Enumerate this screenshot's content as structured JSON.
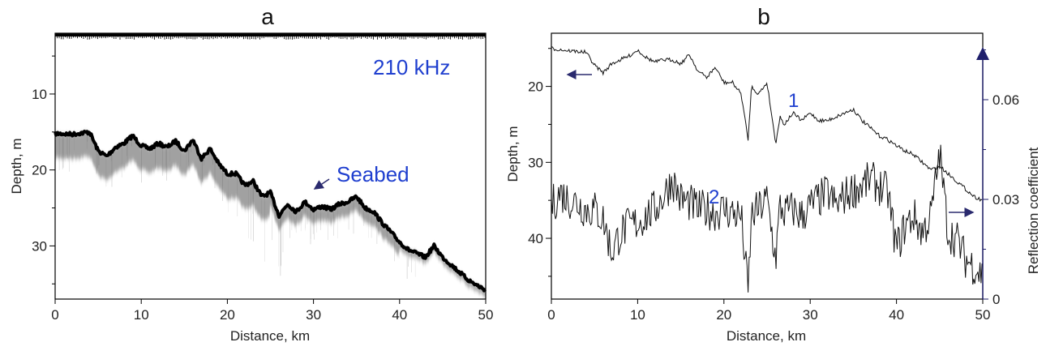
{
  "chart_data": [
    {
      "type": "echogram",
      "panel_label": "a",
      "xlabel": "Distance, km",
      "ylabel": "Depth, m",
      "xlim": [
        0,
        50
      ],
      "ylim": [
        37,
        2
      ],
      "xticks": [
        0,
        10,
        20,
        30,
        40,
        50
      ],
      "yticks": [
        10,
        20,
        30
      ],
      "annotations": {
        "frequency": "210 kHz",
        "seabed": "Seabed"
      },
      "seabed_depth_profile": {
        "x": [
          0,
          2,
          4,
          5,
          6,
          7,
          8,
          9,
          10,
          11,
          12,
          13,
          14,
          15,
          16,
          17,
          18,
          19,
          20,
          21,
          22,
          23,
          24,
          25,
          26,
          27,
          28,
          29,
          30,
          31,
          32,
          33,
          34,
          35,
          36,
          37,
          38,
          39,
          40,
          41,
          42,
          43,
          44,
          45,
          46,
          47,
          48,
          49,
          50
        ],
        "y": [
          15.2,
          15.3,
          15.0,
          17.5,
          18.2,
          17.0,
          16.5,
          15.5,
          16.8,
          17.2,
          16.5,
          17.0,
          16.2,
          17.5,
          16.0,
          18.5,
          17.2,
          19.2,
          20.5,
          20.5,
          22.0,
          21.5,
          23.5,
          23.0,
          26.0,
          24.5,
          25.5,
          24.2,
          25.2,
          24.8,
          25.2,
          24.5,
          24.2,
          23.5,
          25.0,
          25.5,
          27.0,
          28.2,
          29.5,
          30.5,
          31.0,
          31.5,
          30.0,
          31.5,
          32.5,
          33.5,
          34.5,
          35.2,
          35.8
        ]
      }
    },
    {
      "type": "line",
      "panel_label": "b",
      "xlabel": "Distance, km",
      "ylabel": "Depth, m",
      "y2label": "Reflection coefficient",
      "xlim": [
        0,
        50
      ],
      "ylim": [
        48,
        13
      ],
      "y2lim": [
        0,
        0.08
      ],
      "xticks": [
        0,
        10,
        20,
        30,
        40,
        50
      ],
      "yticks": [
        20,
        30,
        40
      ],
      "y2ticks": [
        0,
        0.03,
        0.06
      ],
      "y2ticklabels": [
        "0",
        "0.03",
        "0.06"
      ],
      "series": [
        {
          "name": "1",
          "axis": "left",
          "x": [
            0,
            2,
            4,
            5,
            6,
            7,
            8,
            9,
            10,
            11,
            12,
            13,
            14,
            15,
            16,
            17,
            18,
            19,
            20,
            21,
            22,
            22.8,
            23.2,
            24,
            25,
            25.5,
            26,
            26.5,
            27,
            28,
            29,
            30,
            31,
            32,
            33,
            34,
            35,
            36,
            37,
            38,
            39,
            40,
            41,
            42,
            43,
            44,
            45,
            46,
            47,
            48,
            49,
            50
          ],
          "y": [
            15.0,
            15.3,
            15.5,
            17.2,
            18.2,
            17.0,
            16.5,
            16.0,
            15.2,
            16.2,
            16.8,
            16.5,
            16.5,
            17.0,
            15.8,
            18.0,
            18.8,
            17.5,
            19.5,
            19.5,
            21.0,
            27.0,
            20.0,
            21.0,
            19.5,
            23.5,
            27.5,
            24.0,
            25.0,
            23.5,
            24.5,
            23.5,
            24.5,
            24.5,
            24.0,
            23.5,
            23.0,
            24.5,
            25.5,
            26.5,
            27.0,
            27.8,
            28.5,
            29.0,
            30.0,
            31.0,
            30.5,
            31.5,
            32.5,
            33.5,
            34.5,
            35.0
          ]
        },
        {
          "name": "2",
          "axis": "right",
          "x": [
            0,
            1,
            2,
            3,
            4,
            5,
            6,
            7,
            8,
            9,
            10,
            11,
            12,
            13,
            14,
            15,
            16,
            17,
            18,
            19,
            20,
            21,
            22,
            22.8,
            23.2,
            24,
            25,
            26,
            26.5,
            27,
            28,
            29,
            30,
            31,
            32,
            33,
            34,
            35,
            36,
            37,
            38,
            39,
            40,
            41,
            42,
            43,
            44,
            45,
            46,
            47,
            48,
            49,
            50
          ],
          "y": [
            0.028,
            0.032,
            0.03,
            0.029,
            0.027,
            0.027,
            0.024,
            0.014,
            0.02,
            0.022,
            0.023,
            0.025,
            0.027,
            0.031,
            0.036,
            0.03,
            0.029,
            0.027,
            0.027,
            0.026,
            0.027,
            0.026,
            0.025,
            0.002,
            0.025,
            0.027,
            0.03,
            0.012,
            0.028,
            0.026,
            0.027,
            0.025,
            0.028,
            0.03,
            0.032,
            0.028,
            0.031,
            0.033,
            0.034,
            0.036,
            0.034,
            0.032,
            0.015,
            0.022,
            0.025,
            0.02,
            0.025,
            0.044,
            0.02,
            0.018,
            0.012,
            0.01,
            0.007
          ]
        }
      ],
      "annotations": {
        "label_1": "1",
        "label_2": "2"
      }
    }
  ]
}
